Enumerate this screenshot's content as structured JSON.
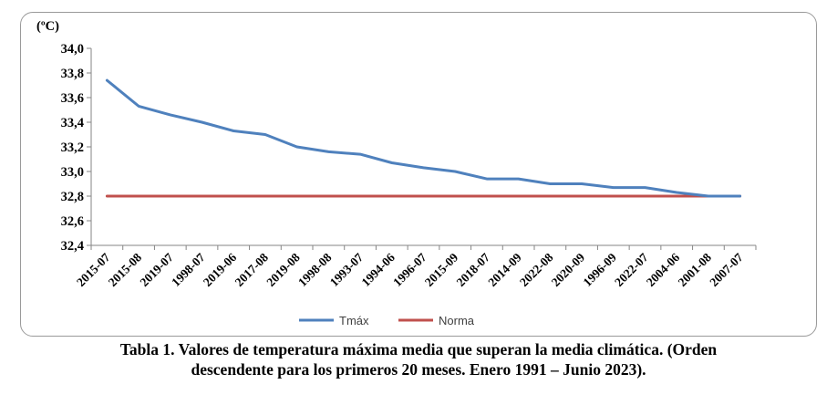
{
  "chart_data": {
    "type": "line",
    "unit_label": "(ºC)",
    "categories": [
      "2015-07",
      "2015-08",
      "2019-07",
      "1998-07",
      "2019-06",
      "2017-08",
      "2019-08",
      "1998-08",
      "1993-07",
      "1994-06",
      "1996-07",
      "2015-09",
      "2018-07",
      "2014-09",
      "2022-08",
      "2020-09",
      "1996-09",
      "2022-07",
      "2004-06",
      "2001-08",
      "2007-07"
    ],
    "ylim": [
      32.4,
      34.0
    ],
    "yticks": [
      "34,0",
      "33,8",
      "33,6",
      "33,4",
      "33,2",
      "33,0",
      "32,8",
      "32,6",
      "32,4"
    ],
    "series": [
      {
        "name": "Tmáx",
        "color": "#4f81bd",
        "values": [
          33.74,
          33.53,
          33.46,
          33.4,
          33.33,
          33.3,
          33.2,
          33.16,
          33.14,
          33.07,
          33.03,
          33.0,
          32.94,
          32.94,
          32.9,
          32.9,
          32.87,
          32.87,
          32.83,
          32.8,
          32.8
        ]
      },
      {
        "name": "Norma",
        "color": "#c0504d",
        "values": [
          32.8,
          32.8,
          32.8,
          32.8,
          32.8,
          32.8,
          32.8,
          32.8,
          32.8,
          32.8,
          32.8,
          32.8,
          32.8,
          32.8,
          32.8,
          32.8,
          32.8,
          32.8,
          32.8,
          32.8,
          32.8
        ]
      }
    ],
    "legend_position": "bottom-center",
    "grid": false
  },
  "caption": {
    "line1": "Tabla 1. Valores de temperatura máxima media que superan la media climática. (Orden",
    "line2": "descendente para los primeros 20 meses. Enero 1991 – Junio 2023)."
  }
}
